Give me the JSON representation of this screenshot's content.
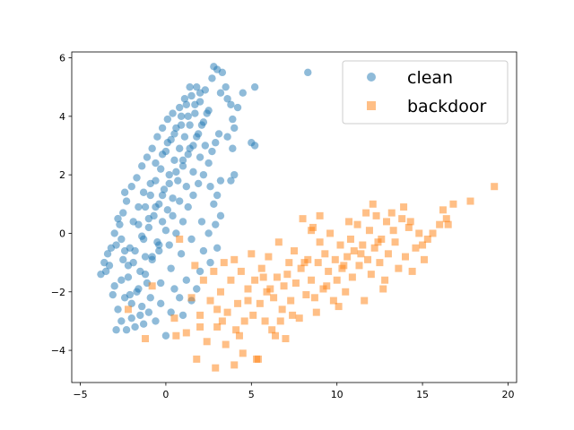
{
  "chart_data": {
    "type": "scatter",
    "title": "",
    "xlabel": "",
    "ylabel": "",
    "xlim": [
      -5.5,
      20.5
    ],
    "ylim": [
      -5.1,
      6.2
    ],
    "x_ticks": [
      -5,
      0,
      5,
      10,
      15,
      20
    ],
    "y_ticks": [
      -4,
      -2,
      0,
      2,
      4,
      6
    ],
    "grid": false,
    "legend": {
      "position": "top-right"
    },
    "series": [
      {
        "name": "clean",
        "marker": "circle",
        "color": "#1f77b4",
        "alpha": 0.5,
        "points": [
          [
            -3.0,
            -1.8
          ],
          [
            -2.8,
            -2.6
          ],
          [
            -2.6,
            -3.0
          ],
          [
            -2.4,
            -2.2
          ],
          [
            -2.3,
            -3.3
          ],
          [
            -2.2,
            -1.5
          ],
          [
            -2.1,
            -0.5
          ],
          [
            -2.0,
            -2.9
          ],
          [
            -1.9,
            -1.0
          ],
          [
            -1.8,
            -3.2
          ],
          [
            -1.7,
            -2.0
          ],
          [
            -1.6,
            0.3
          ],
          [
            -1.5,
            -1.3
          ],
          [
            -1.4,
            -2.5
          ],
          [
            -1.3,
            -0.2
          ],
          [
            -1.2,
            0.9
          ],
          [
            -1.1,
            -1.7
          ],
          [
            -1.0,
            0.2
          ],
          [
            -0.9,
            1.3
          ],
          [
            -0.8,
            -0.8
          ],
          [
            -0.7,
            0.6
          ],
          [
            -0.6,
            1.8
          ],
          [
            -0.5,
            -0.3
          ],
          [
            -0.4,
            1.0
          ],
          [
            -0.3,
            2.2
          ],
          [
            -0.2,
            0.4
          ],
          [
            -0.1,
            1.5
          ],
          [
            0.0,
            2.8
          ],
          [
            0.1,
            0.8
          ],
          [
            0.2,
            2.0
          ],
          [
            0.3,
            3.2
          ],
          [
            0.4,
            1.2
          ],
          [
            0.5,
            2.5
          ],
          [
            0.6,
            3.6
          ],
          [
            0.7,
            1.8
          ],
          [
            0.8,
            2.9
          ],
          [
            0.9,
            4.0
          ],
          [
            1.0,
            2.3
          ],
          [
            1.1,
            3.3
          ],
          [
            1.2,
            4.4
          ],
          [
            1.3,
            2.7
          ],
          [
            1.4,
            3.7
          ],
          [
            1.5,
            4.7
          ],
          [
            1.6,
            3.0
          ],
          [
            1.7,
            4.1
          ],
          [
            1.8,
            5.0
          ],
          [
            1.9,
            3.4
          ],
          [
            2.0,
            4.5
          ],
          [
            2.2,
            3.8
          ],
          [
            2.3,
            4.9
          ],
          [
            2.5,
            4.2
          ],
          [
            2.7,
            5.3
          ],
          [
            3.0,
            5.6
          ],
          [
            3.2,
            4.8
          ],
          [
            3.5,
            5.0
          ],
          [
            3.8,
            4.4
          ],
          [
            4.2,
            4.3
          ],
          [
            4.5,
            4.8
          ],
          [
            5.2,
            5.0
          ],
          [
            8.3,
            5.5
          ],
          [
            2.8,
            5.7
          ],
          [
            3.3,
            5.5
          ],
          [
            3.6,
            4.6
          ],
          [
            3.9,
            3.9
          ],
          [
            4.0,
            3.6
          ],
          [
            3.6,
            3.3
          ],
          [
            3.9,
            2.9
          ],
          [
            5.0,
            3.1
          ],
          [
            5.2,
            3.0
          ],
          [
            4.0,
            2.0
          ],
          [
            3.8,
            1.8
          ],
          [
            3.2,
            1.8
          ],
          [
            3.0,
            1.3
          ],
          [
            2.8,
            1.0
          ],
          [
            3.2,
            0.6
          ],
          [
            2.9,
            0.3
          ],
          [
            2.5,
            0.0
          ],
          [
            3.0,
            -0.5
          ],
          [
            2.6,
            -1.0
          ],
          [
            2.2,
            -0.6
          ],
          [
            2.0,
            -1.3
          ],
          [
            1.8,
            -1.9
          ],
          [
            1.5,
            -2.3
          ],
          [
            1.2,
            -1.6
          ],
          [
            1.0,
            -2.8
          ],
          [
            0.8,
            -2.2
          ],
          [
            0.5,
            -1.9
          ],
          [
            0.3,
            -2.7
          ],
          [
            0.0,
            -3.5
          ],
          [
            -0.3,
            -2.4
          ],
          [
            -0.6,
            -3.0
          ],
          [
            -1.0,
            -2.7
          ],
          [
            -1.3,
            -3.1
          ],
          [
            -3.2,
            -0.5
          ],
          [
            -3.3,
            -1.1
          ],
          [
            -3.5,
            -1.3
          ],
          [
            -3.8,
            -1.4
          ],
          [
            -3.1,
            -2.1
          ],
          [
            -2.9,
            -0.4
          ],
          [
            -2.7,
            0.3
          ],
          [
            -2.5,
            0.7
          ],
          [
            -2.3,
            1.1
          ],
          [
            -2.4,
            1.4
          ],
          [
            -2.0,
            1.6
          ],
          [
            -1.7,
            1.9
          ],
          [
            -1.4,
            2.3
          ],
          [
            -1.1,
            2.6
          ],
          [
            -0.8,
            2.9
          ],
          [
            -0.5,
            3.3
          ],
          [
            -0.2,
            3.6
          ],
          [
            0.1,
            3.9
          ],
          [
            0.4,
            4.1
          ],
          [
            0.8,
            4.3
          ],
          [
            1.1,
            4.6
          ],
          [
            1.4,
            5.0
          ],
          [
            -1.2,
            -0.8
          ],
          [
            -0.4,
            -0.6
          ],
          [
            0.2,
            -0.4
          ],
          [
            0.6,
            0.0
          ],
          [
            1.0,
            0.4
          ],
          [
            1.3,
            0.9
          ],
          [
            1.6,
            1.3
          ],
          [
            1.9,
            1.7
          ],
          [
            2.2,
            2.0
          ],
          [
            2.5,
            2.4
          ],
          [
            2.7,
            2.8
          ],
          [
            2.9,
            3.1
          ],
          [
            3.1,
            3.4
          ],
          [
            -2.6,
            -1.6
          ],
          [
            -2.2,
            -1.1
          ],
          [
            -1.8,
            -0.6
          ],
          [
            -1.4,
            -0.1
          ],
          [
            -1.0,
            0.5
          ],
          [
            -0.6,
            0.9
          ],
          [
            -0.2,
            1.3
          ],
          [
            0.2,
            1.7
          ],
          [
            0.6,
            2.1
          ],
          [
            1.0,
            2.5
          ],
          [
            1.4,
            2.9
          ],
          [
            1.8,
            3.3
          ],
          [
            2.1,
            3.7
          ],
          [
            2.4,
            4.1
          ],
          [
            -2.0,
            -2.4
          ],
          [
            -1.6,
            -1.9
          ],
          [
            -1.2,
            -1.4
          ],
          [
            -0.8,
            -0.9
          ],
          [
            -0.4,
            -0.4
          ],
          [
            0.0,
            0.1
          ],
          [
            0.4,
            0.6
          ],
          [
            0.8,
            1.1
          ],
          [
            1.2,
            1.6
          ],
          [
            1.6,
            2.1
          ],
          [
            2.0,
            2.6
          ],
          [
            2.3,
            3.0
          ],
          [
            -2.9,
            -3.3
          ],
          [
            -2.5,
            -0.9
          ],
          [
            -2.1,
            -2.1
          ],
          [
            -1.5,
            -2.8
          ],
          [
            -0.9,
            -2.2
          ],
          [
            -0.3,
            -1.7
          ],
          [
            0.3,
            -1.2
          ],
          [
            0.9,
            -0.7
          ],
          [
            1.5,
            -0.2
          ],
          [
            2.1,
            0.4
          ],
          [
            2.6,
            1.6
          ],
          [
            -3.4,
            -0.7
          ],
          [
            -3.6,
            -1.0
          ],
          [
            -3.0,
            0.0
          ],
          [
            -2.8,
            0.5
          ],
          [
            -2.6,
            -0.2
          ],
          [
            -2.4,
            -0.6
          ],
          [
            -1.9,
            0.4
          ],
          [
            -1.6,
            0.9
          ],
          [
            -1.3,
            1.4
          ],
          [
            -0.9,
            1.7
          ],
          [
            -0.6,
            2.4
          ],
          [
            -0.2,
            2.7
          ],
          [
            0.1,
            3.1
          ],
          [
            0.5,
            3.4
          ],
          [
            0.9,
            3.7
          ],
          [
            1.3,
            4.0
          ],
          [
            1.7,
            4.4
          ],
          [
            2.0,
            4.8
          ]
        ]
      },
      {
        "name": "backdoor",
        "marker": "square",
        "color": "#ff7f0e",
        "alpha": 0.5,
        "points": [
          [
            -2.2,
            -2.6
          ],
          [
            -1.2,
            -3.6
          ],
          [
            -0.8,
            -1.8
          ],
          [
            0.8,
            -0.2
          ],
          [
            0.5,
            -2.9
          ],
          [
            0.6,
            -3.5
          ],
          [
            1.2,
            -3.4
          ],
          [
            1.5,
            -2.2
          ],
          [
            1.7,
            -1.1
          ],
          [
            1.8,
            -4.3
          ],
          [
            2.0,
            -2.8
          ],
          [
            2.2,
            -1.6
          ],
          [
            2.4,
            -3.7
          ],
          [
            2.6,
            -2.3
          ],
          [
            2.8,
            -1.3
          ],
          [
            2.9,
            -4.6
          ],
          [
            3.0,
            -3.2
          ],
          [
            3.2,
            -2.0
          ],
          [
            3.4,
            -1.0
          ],
          [
            3.5,
            -3.8
          ],
          [
            3.6,
            -2.7
          ],
          [
            3.8,
            -1.6
          ],
          [
            4.0,
            -0.9
          ],
          [
            4.1,
            -3.3
          ],
          [
            4.2,
            -2.4
          ],
          [
            4.4,
            -1.3
          ],
          [
            4.5,
            -4.1
          ],
          [
            4.6,
            -3.0
          ],
          [
            4.8,
            -1.9
          ],
          [
            5.0,
            -0.7
          ],
          [
            5.1,
            -2.8
          ],
          [
            5.2,
            -1.6
          ],
          [
            5.4,
            -4.3
          ],
          [
            5.5,
            -2.4
          ],
          [
            5.6,
            -1.2
          ],
          [
            5.8,
            -3.0
          ],
          [
            5.9,
            -2.0
          ],
          [
            6.0,
            -0.8
          ],
          [
            6.2,
            -3.3
          ],
          [
            6.3,
            -2.2
          ],
          [
            6.5,
            -1.5
          ],
          [
            6.6,
            -0.3
          ],
          [
            6.8,
            -2.6
          ],
          [
            6.9,
            -1.8
          ],
          [
            7.0,
            -3.6
          ],
          [
            7.2,
            -1.0
          ],
          [
            7.3,
            -2.3
          ],
          [
            7.5,
            -0.6
          ],
          [
            7.6,
            -1.7
          ],
          [
            7.8,
            -2.9
          ],
          [
            7.9,
            -1.2
          ],
          [
            8.0,
            0.5
          ],
          [
            8.2,
            -2.1
          ],
          [
            8.3,
            -0.9
          ],
          [
            8.5,
            -1.6
          ],
          [
            8.6,
            0.2
          ],
          [
            8.8,
            -2.7
          ],
          [
            8.9,
            -1.0
          ],
          [
            9.0,
            -0.3
          ],
          [
            9.2,
            -1.9
          ],
          [
            9.3,
            -0.7
          ],
          [
            9.5,
            -1.3
          ],
          [
            9.6,
            0.0
          ],
          [
            9.8,
            -2.3
          ],
          [
            9.9,
            -0.9
          ],
          [
            10.0,
            -1.6
          ],
          [
            10.2,
            -0.4
          ],
          [
            10.3,
            -1.2
          ],
          [
            10.5,
            -2.0
          ],
          [
            10.6,
            -0.8
          ],
          [
            10.8,
            -0.2
          ],
          [
            10.9,
            -1.5
          ],
          [
            11.0,
            -0.6
          ],
          [
            11.2,
            0.3
          ],
          [
            11.3,
            -1.1
          ],
          [
            11.5,
            -0.4
          ],
          [
            11.6,
            -2.3
          ],
          [
            11.8,
            -0.9
          ],
          [
            11.9,
            0.1
          ],
          [
            12.0,
            -1.4
          ],
          [
            12.2,
            -0.5
          ],
          [
            12.3,
            0.6
          ],
          [
            12.5,
            -1.0
          ],
          [
            12.6,
            -0.2
          ],
          [
            12.8,
            -1.6
          ],
          [
            12.9,
            0.4
          ],
          [
            13.0,
            -0.7
          ],
          [
            13.2,
            0.7
          ],
          [
            13.4,
            -0.3
          ],
          [
            13.6,
            -1.2
          ],
          [
            13.8,
            0.5
          ],
          [
            14.0,
            -0.8
          ],
          [
            14.2,
            0.2
          ],
          [
            14.4,
            -1.3
          ],
          [
            14.6,
            -0.5
          ],
          [
            14.8,
            0.0
          ],
          [
            15.0,
            -0.4
          ],
          [
            15.3,
            -0.2
          ],
          [
            15.6,
            0.0
          ],
          [
            16.0,
            0.3
          ],
          [
            16.4,
            0.5
          ],
          [
            16.8,
            1.0
          ],
          [
            17.8,
            1.1
          ],
          [
            19.2,
            1.6
          ],
          [
            8.5,
            0.1
          ],
          [
            9.0,
            0.6
          ],
          [
            4.0,
            -4.5
          ],
          [
            2.0,
            -3.2
          ],
          [
            3.0,
            -2.6
          ],
          [
            5.3,
            -4.3
          ],
          [
            6.4,
            -3.5
          ],
          [
            7.4,
            -2.8
          ],
          [
            6.1,
            -1.9
          ],
          [
            7.1,
            -1.4
          ],
          [
            8.1,
            -1.0
          ],
          [
            4.8,
            -2.3
          ],
          [
            5.7,
            -1.5
          ],
          [
            9.4,
            -1.8
          ],
          [
            10.4,
            -1.1
          ],
          [
            11.4,
            -0.7
          ],
          [
            12.4,
            -0.3
          ],
          [
            13.3,
            0.1
          ],
          [
            14.3,
            0.4
          ],
          [
            3.3,
            -3.0
          ],
          [
            4.3,
            -3.5
          ],
          [
            6.7,
            -3.0
          ],
          [
            8.7,
            -2.2
          ],
          [
            10.1,
            -2.5
          ],
          [
            12.7,
            -1.9
          ],
          [
            10.7,
            0.4
          ],
          [
            11.7,
            0.7
          ],
          [
            12.1,
            1.0
          ],
          [
            13.9,
            0.9
          ],
          [
            15.1,
            -0.9
          ],
          [
            16.5,
            0.3
          ],
          [
            16.2,
            0.8
          ]
        ]
      }
    ]
  }
}
